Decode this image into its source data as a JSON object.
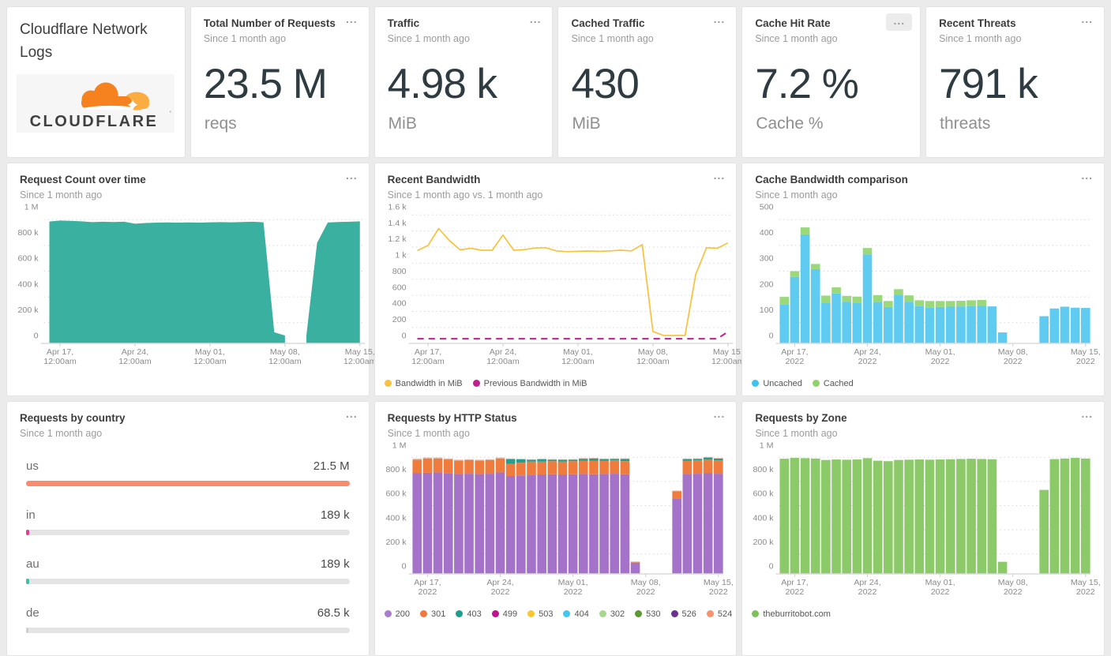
{
  "ui": {
    "menu_icon": "..."
  },
  "header_card": {
    "title": "Cloudflare Network Logs",
    "logo_text": "CLOUDFLARE",
    "logo_orange": "#f6821f",
    "logo_light_orange": "#fbad41",
    "logo_text_color": "#404041"
  },
  "stat_cards": [
    {
      "title": "Total Number of Requests",
      "subtitle": "Since 1 month ago",
      "value": "23.5 M",
      "unit": "reqs"
    },
    {
      "title": "Traffic",
      "subtitle": "Since 1 month ago",
      "value": "4.98 k",
      "unit": "MiB"
    },
    {
      "title": "Cached Traffic",
      "subtitle": "Since 1 month ago",
      "value": "430",
      "unit": "MiB"
    },
    {
      "title": "Cache Hit Rate",
      "subtitle": "Since 1 month ago",
      "value": "7.2 %",
      "unit": "Cache %"
    },
    {
      "title": "Recent Threats",
      "subtitle": "Since 1 month ago",
      "value": "791 k",
      "unit": "threats"
    }
  ],
  "chart_data": [
    {
      "type": "area",
      "title": "Request Count over time",
      "subtitle": "Since 1 month ago",
      "svgH": 222,
      "ymax": 1000,
      "rpad": 4,
      "value_unit": "thousand requests",
      "yticks": [
        {
          "v": 1000,
          "label": "1 M"
        },
        {
          "v": 800,
          "label": "800 k"
        },
        {
          "v": 600,
          "label": "600 k"
        },
        {
          "v": 400,
          "label": "400 k"
        },
        {
          "v": 200,
          "label": "200 k"
        },
        {
          "v": 0,
          "label": "0"
        }
      ],
      "xticks": [
        {
          "i": 1,
          "l1": "Apr 17,",
          "l2": "12:00am"
        },
        {
          "i": 8,
          "l1": "Apr 24,",
          "l2": "12:00am"
        },
        {
          "i": 15,
          "l1": "May 01,",
          "l2": "12:00am"
        },
        {
          "i": 22,
          "l1": "May 08,",
          "l2": "12:00am"
        },
        {
          "i": 29,
          "l1": "May 15,",
          "l2": "12:00am"
        }
      ],
      "series": [
        {
          "name": "Requests",
          "color": "#3ab0a0",
          "values": [
            886,
            893,
            891,
            887,
            881,
            884,
            882,
            884,
            869,
            874,
            877,
            879,
            877,
            879,
            877,
            880,
            881,
            880,
            882,
            884,
            880,
            25,
            0,
            null,
            0,
            720,
            878,
            882,
            884,
            887
          ]
        }
      ]
    },
    {
      "type": "line",
      "title": "Recent Bandwidth",
      "subtitle": "Since 1 month ago vs. 1 month ago",
      "svgH": 222,
      "ymax": 1600,
      "rpad": 4,
      "value_unit": "MiB",
      "yticks": [
        {
          "v": 1600,
          "label": "1.6 k"
        },
        {
          "v": 1400,
          "label": "1.4 k"
        },
        {
          "v": 1200,
          "label": "1.2 k"
        },
        {
          "v": 1000,
          "label": "1 k"
        },
        {
          "v": 800,
          "label": "800"
        },
        {
          "v": 600,
          "label": "600"
        },
        {
          "v": 400,
          "label": "400"
        },
        {
          "v": 200,
          "label": "200"
        },
        {
          "v": 0,
          "label": "0"
        }
      ],
      "xticks": [
        {
          "i": 1,
          "l1": "Apr 17,",
          "l2": "12:00am"
        },
        {
          "i": 8,
          "l1": "Apr 24,",
          "l2": "12:00am"
        },
        {
          "i": 15,
          "l1": "May 01,",
          "l2": "12:00am"
        },
        {
          "i": 22,
          "l1": "May 08,",
          "l2": "12:00am"
        },
        {
          "i": 29,
          "l1": "May 15,",
          "l2": "12:00am"
        }
      ],
      "series": [
        {
          "name": "Bandwidth in MiB",
          "color": "#f7c23e",
          "width": 1.7,
          "values": [
            1055,
            1120,
            1330,
            1180,
            1065,
            1085,
            1060,
            1060,
            1250,
            1060,
            1068,
            1088,
            1092,
            1052,
            1042,
            1046,
            1050,
            1046,
            1052,
            1060,
            1052,
            1130,
            50,
            0,
            0,
            0,
            760,
            1092,
            1085,
            1150
          ]
        },
        {
          "name": "Previous Bandwidth in MiB",
          "color": "#c01f8f",
          "width": 2,
          "dash": "8 6",
          "values": [
            -40,
            -40,
            -40,
            -40,
            -40,
            -40,
            -40,
            -40,
            -40,
            -40,
            -40,
            -40,
            -40,
            -40,
            -40,
            -40,
            -40,
            -40,
            -40,
            -40,
            -40,
            -40,
            -40,
            -40,
            -40,
            -40,
            -40,
            -40,
            -40,
            45
          ]
        }
      ],
      "legend": [
        {
          "label": "Bandwidth in MiB",
          "color": "#f7c23e"
        },
        {
          "label": "Previous Bandwidth in MiB",
          "color": "#c01f8f"
        }
      ]
    },
    {
      "type": "stacked-bar",
      "title": "Cache Bandwidth comparison",
      "subtitle": "Since 1 month ago",
      "svgH": 222,
      "ymax": 500,
      "rpad": 16,
      "value_unit": "MiB",
      "yticks": [
        {
          "v": 500,
          "label": "500"
        },
        {
          "v": 400,
          "label": "400"
        },
        {
          "v": 300,
          "label": "300"
        },
        {
          "v": 200,
          "label": "200"
        },
        {
          "v": 100,
          "label": "100"
        },
        {
          "v": 0,
          "label": "0"
        }
      ],
      "xticks": [
        {
          "i": 1,
          "l1": "Apr 17,",
          "l2": "2022"
        },
        {
          "i": 8,
          "l1": "Apr 24,",
          "l2": "2022"
        },
        {
          "i": 15,
          "l1": "May 01,",
          "l2": "2022"
        },
        {
          "i": 22,
          "l1": "May 08,",
          "l2": "2022"
        },
        {
          "i": 29,
          "l1": "May 15,",
          "l2": "2022"
        }
      ],
      "series": [
        {
          "name": "Uncached",
          "color": "#5fcbf1",
          "values": [
            120,
            228,
            393,
            258,
            127,
            163,
            131,
            126,
            315,
            130,
            111,
            159,
            131,
            114,
            108,
            111,
            112,
            113,
            114,
            115,
            113,
            12,
            null,
            null,
            null,
            75,
            105,
            112,
            108,
            107
          ]
        },
        {
          "name": "Cached",
          "color": "#9ad879",
          "values": [
            30,
            22,
            27,
            20,
            28,
            24,
            23,
            25,
            25,
            27,
            23,
            21,
            25,
            23,
            26,
            23,
            22,
            22,
            23,
            23,
            0,
            0,
            null,
            null,
            null,
            0,
            0,
            0,
            0,
            0
          ]
        }
      ],
      "legend": [
        {
          "label": "Uncached",
          "color": "#41c2ee"
        },
        {
          "label": "Cached",
          "color": "#8fd36a"
        }
      ]
    },
    {
      "type": "hbar-gauge",
      "title": "Requests by country",
      "subtitle": "Since 1 month ago",
      "rows": [
        {
          "label": "us",
          "value": "21.5 M",
          "pct": 100,
          "color": "#f98b6e"
        },
        {
          "label": "in",
          "value": "189 k",
          "pct": 1.0,
          "color": "#df3f97"
        },
        {
          "label": "au",
          "value": "189 k",
          "pct": 1.0,
          "color": "#3dbfa9"
        },
        {
          "label": "de",
          "value": "68.5 k",
          "pct": 0.45,
          "color": "#cfcfcf"
        }
      ]
    },
    {
      "type": "stacked-bar",
      "title": "Requests by HTTP Status",
      "subtitle": "Since 1 month ago",
      "svgH": 212,
      "ymax": 1000,
      "rpad": 16,
      "value_unit": "thousand requests",
      "yticks": [
        {
          "v": 1000,
          "label": "1 M"
        },
        {
          "v": 800,
          "label": "800 k"
        },
        {
          "v": 600,
          "label": "600 k"
        },
        {
          "v": 400,
          "label": "400 k"
        },
        {
          "v": 200,
          "label": "200 k"
        },
        {
          "v": 0,
          "label": "0"
        }
      ],
      "xticks": [
        {
          "i": 1,
          "l1": "Apr 17,",
          "l2": "2022"
        },
        {
          "i": 8,
          "l1": "Apr 24,",
          "l2": "2022"
        },
        {
          "i": 15,
          "l1": "May 01,",
          "l2": "2022"
        },
        {
          "i": 22,
          "l1": "May 08,",
          "l2": "2022"
        },
        {
          "i": 29,
          "l1": "May 15,",
          "l2": "2022"
        }
      ],
      "series": [
        {
          "name": "200",
          "color": "#a572c9",
          "values": [
            768,
            772,
            775,
            770,
            762,
            764,
            762,
            764,
            775,
            745,
            750,
            756,
            758,
            760,
            758,
            760,
            762,
            760,
            762,
            764,
            760,
            28,
            null,
            null,
            null,
            560,
            762,
            764,
            768,
            764
          ]
        },
        {
          "name": "301",
          "color": "#ef7c3c",
          "values": [
            112,
            118,
            115,
            112,
            110,
            112,
            110,
            112,
            115,
            100,
            105,
            108,
            106,
            108,
            106,
            108,
            108,
            110,
            108,
            110,
            108,
            6,
            null,
            null,
            null,
            60,
            108,
            110,
            112,
            110
          ]
        },
        {
          "name": "403",
          "color": "#259e8e",
          "values": [
            0,
            0,
            0,
            0,
            0,
            0,
            0,
            0,
            0,
            40,
            28,
            15,
            20,
            12,
            15,
            12,
            18,
            20,
            15,
            12,
            18,
            0,
            null,
            null,
            null,
            0,
            15,
            12,
            18,
            15
          ]
        },
        {
          "name": "524",
          "color": "#e0b49c",
          "values": [
            8,
            8,
            8,
            8,
            8,
            8,
            8,
            8,
            8,
            5,
            5,
            5,
            5,
            5,
            5,
            5,
            5,
            5,
            5,
            5,
            5,
            3,
            null,
            null,
            null,
            4,
            5,
            5,
            5,
            5
          ]
        }
      ],
      "legend": [
        {
          "label": "200",
          "color": "#a87dd0"
        },
        {
          "label": "301",
          "color": "#f1793b"
        },
        {
          "label": "403",
          "color": "#1d9d8d"
        },
        {
          "label": "499",
          "color": "#c2108f"
        },
        {
          "label": "503",
          "color": "#fdc52f"
        },
        {
          "label": "404",
          "color": "#45c5ef"
        },
        {
          "label": "302",
          "color": "#a8d98b"
        },
        {
          "label": "530",
          "color": "#5d9a33"
        },
        {
          "label": "526",
          "color": "#6b3093"
        },
        {
          "label": "524",
          "color": "#f7926e"
        }
      ]
    },
    {
      "type": "stacked-bar",
      "title": "Requests by Zone",
      "subtitle": "Since 1 month ago",
      "svgH": 212,
      "ymax": 1000,
      "rpad": 16,
      "value_unit": "thousand requests",
      "yticks": [
        {
          "v": 1000,
          "label": "1 M"
        },
        {
          "v": 800,
          "label": "800 k"
        },
        {
          "v": 600,
          "label": "600 k"
        },
        {
          "v": 400,
          "label": "400 k"
        },
        {
          "v": 200,
          "label": "200 k"
        },
        {
          "v": 0,
          "label": "0"
        }
      ],
      "xticks": [
        {
          "i": 1,
          "l1": "Apr 17,",
          "l2": "2022"
        },
        {
          "i": 8,
          "l1": "Apr 24,",
          "l2": "2022"
        },
        {
          "i": 15,
          "l1": "May 01,",
          "l2": "2022"
        },
        {
          "i": 22,
          "l1": "May 08,",
          "l2": "2022"
        },
        {
          "i": 29,
          "l1": "May 15,",
          "l2": "2022"
        }
      ],
      "series": [
        {
          "name": "theburritobot.com",
          "color": "#8cc968",
          "values": [
            888,
            895,
            893,
            890,
            878,
            882,
            880,
            882,
            893,
            872,
            868,
            878,
            880,
            882,
            880,
            882,
            884,
            886,
            888,
            886,
            884,
            35,
            null,
            null,
            null,
            630,
            885,
            890,
            895,
            890
          ]
        }
      ],
      "legend": [
        {
          "label": "theburritobot.com",
          "color": "#7cc25b"
        }
      ]
    }
  ]
}
